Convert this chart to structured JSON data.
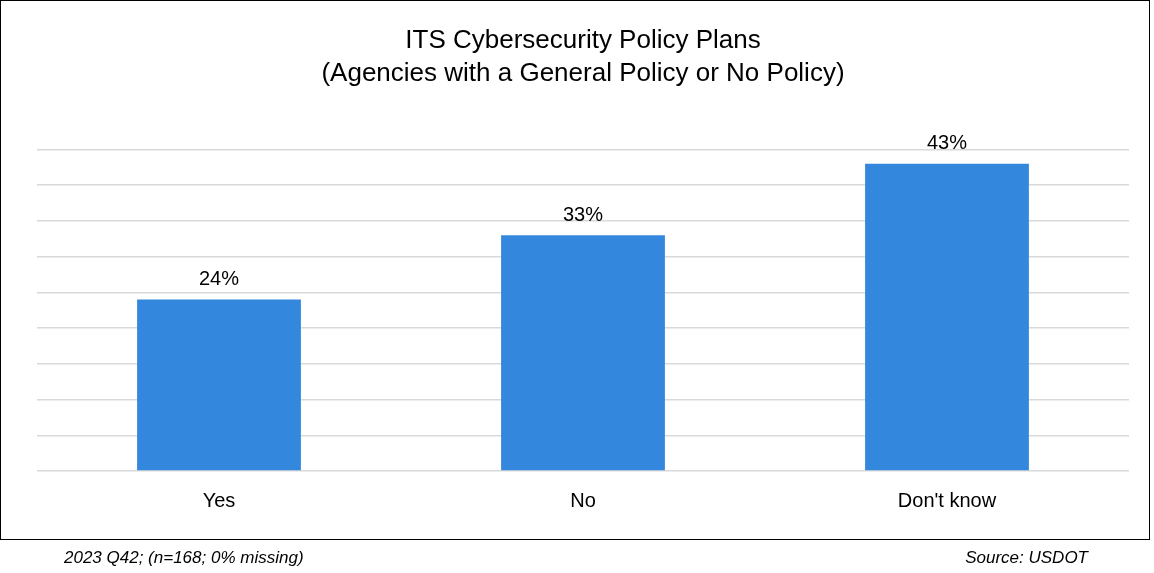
{
  "chart_data": {
    "type": "bar",
    "title": "ITS Cybersecurity Policy Plans",
    "subtitle": "(Agencies with a General Policy or No Policy)",
    "categories": [
      "Yes",
      "No",
      "Don't know"
    ],
    "values": [
      24,
      33,
      43
    ],
    "color": "#3388dd",
    "value_labels": [
      "24%",
      "33%",
      "43%"
    ],
    "tick_labels": "x",
    "grid": "y",
    "legend": false,
    "annotations": [
      "2023 Q42; (n=168; 0% missing)",
      "Source: USDOT"
    ]
  }
}
